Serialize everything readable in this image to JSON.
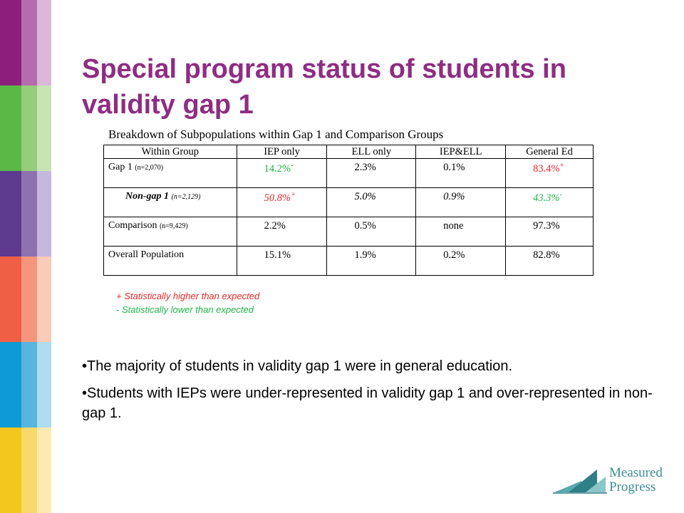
{
  "slide": {
    "title": "Special program status of students in validity gap 1"
  },
  "colors": {
    "title": "#8e2d82",
    "higher": "#e8282b",
    "lower": "#21b24b",
    "logo": "#3d8f94",
    "stripes": [
      [
        "#8b1f7a",
        "#b56cae",
        "#dbb7d9"
      ],
      [
        "#5ab847",
        "#97cc7c",
        "#c8e3b4"
      ],
      [
        "#5e3a8e",
        "#8e72b0",
        "#c5b8dc"
      ],
      [
        "#ee5f45",
        "#f4957d",
        "#f9cbb9"
      ],
      [
        "#0e9bd5",
        "#58b6dd",
        "#afdcef"
      ],
      [
        "#f4c71c",
        "#f7da6b",
        "#fbebb0"
      ]
    ]
  },
  "table": {
    "caption": "Breakdown of Subpopulations within Gap 1 and Comparison Groups",
    "headers": [
      "Within Group",
      "IEP only",
      "ELL only",
      "IEP&ELL",
      "General Ed"
    ],
    "rows": [
      {
        "label": "Gap 1",
        "n": "(n=2,070)",
        "cells": [
          {
            "text": "14.2%",
            "mark": "-",
            "color": "green"
          },
          {
            "text": "2.3%",
            "mark": "",
            "color": ""
          },
          {
            "text": "0.1%",
            "mark": "",
            "color": ""
          },
          {
            "text": "83.4%",
            "mark": "+",
            "color": "red"
          }
        ]
      },
      {
        "label": "Non-gap 1",
        "n": "(n=2,129)",
        "cells": [
          {
            "text": "50.8%",
            "mark": "+",
            "color": "red"
          },
          {
            "text": "5.0%",
            "mark": "",
            "color": ""
          },
          {
            "text": "0.9%",
            "mark": "",
            "color": ""
          },
          {
            "text": "43.3%",
            "mark": "-",
            "color": "green"
          }
        ]
      },
      {
        "label": "Comparison",
        "n": "(n=9,429)",
        "cells": [
          {
            "text": "2.2%",
            "mark": "",
            "color": ""
          },
          {
            "text": "0.5%",
            "mark": "",
            "color": ""
          },
          {
            "text": "none",
            "mark": "",
            "color": ""
          },
          {
            "text": "97.3%",
            "mark": "",
            "color": ""
          }
        ]
      },
      {
        "label": "Overall Population",
        "n": "",
        "cells": [
          {
            "text": "15.1%",
            "mark": "",
            "color": ""
          },
          {
            "text": "1.9%",
            "mark": "",
            "color": ""
          },
          {
            "text": "0.2%",
            "mark": "",
            "color": ""
          },
          {
            "text": "82.8%",
            "mark": "",
            "color": ""
          }
        ]
      }
    ]
  },
  "legend": {
    "higher": "+ Statistically higher than expected",
    "lower": "-  Statistically lower than expected"
  },
  "bullets": [
    "•The majority of students in validity gap 1 were in general education.",
    "•Students with IEPs were under-represented in validity gap 1 and over-represented in non-gap 1."
  ],
  "logo": {
    "line1": "Measured",
    "line2": "Progress"
  }
}
